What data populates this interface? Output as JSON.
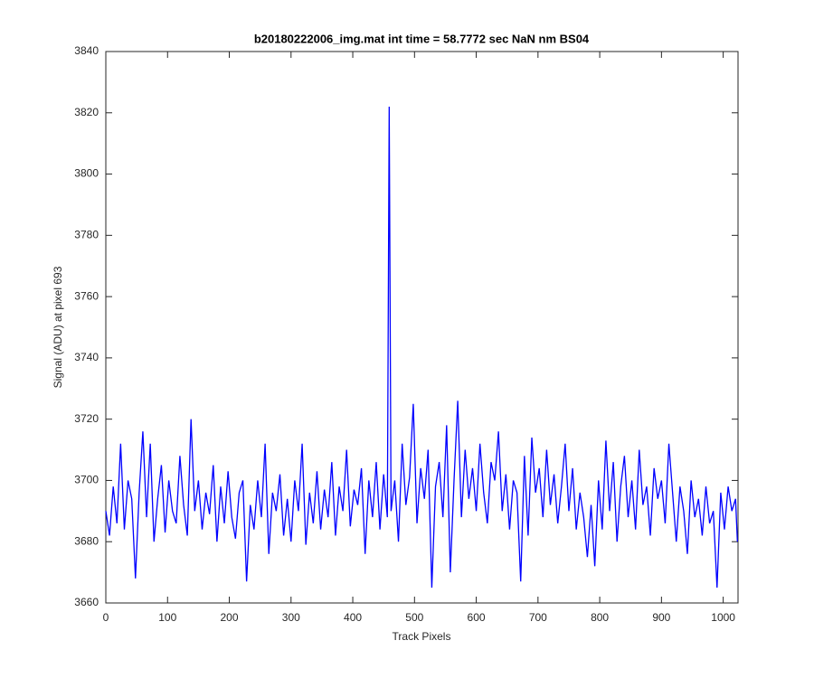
{
  "chart_data": {
    "type": "line",
    "title": "b20180222006_img.mat int time = 58.7772 sec  NaN nm BS04",
    "xlabel": "Track Pixels",
    "ylabel": "Signal (ADU) at pixel 693",
    "color": "#0000ff",
    "xlim": [
      0,
      1024
    ],
    "ylim": [
      3660,
      3840
    ],
    "xticks": [
      0,
      100,
      200,
      300,
      400,
      500,
      600,
      700,
      800,
      900,
      1000
    ],
    "yticks": [
      3660,
      3680,
      3700,
      3720,
      3740,
      3760,
      3780,
      3800,
      3820,
      3840
    ],
    "grid": false,
    "x": [
      0,
      6,
      12,
      18,
      24,
      30,
      36,
      42,
      48,
      54,
      60,
      66,
      72,
      78,
      84,
      90,
      96,
      102,
      108,
      114,
      120,
      126,
      132,
      138,
      144,
      150,
      156,
      162,
      168,
      174,
      180,
      186,
      192,
      198,
      204,
      210,
      216,
      222,
      228,
      234,
      240,
      246,
      252,
      258,
      264,
      270,
      276,
      282,
      288,
      294,
      300,
      306,
      312,
      318,
      324,
      330,
      336,
      342,
      348,
      354,
      360,
      366,
      372,
      378,
      384,
      390,
      396,
      402,
      408,
      414,
      420,
      426,
      432,
      438,
      444,
      450,
      456,
      459,
      462,
      468,
      474,
      480,
      486,
      492,
      498,
      504,
      510,
      516,
      522,
      528,
      534,
      540,
      546,
      552,
      558,
      564,
      570,
      576,
      582,
      588,
      594,
      600,
      606,
      612,
      618,
      624,
      630,
      636,
      642,
      648,
      654,
      660,
      666,
      672,
      678,
      684,
      690,
      696,
      702,
      708,
      714,
      720,
      726,
      732,
      738,
      744,
      750,
      756,
      762,
      768,
      774,
      780,
      786,
      792,
      798,
      804,
      810,
      816,
      822,
      828,
      834,
      840,
      846,
      852,
      858,
      864,
      870,
      876,
      882,
      888,
      894,
      900,
      906,
      912,
      918,
      924,
      930,
      936,
      942,
      948,
      954,
      960,
      966,
      972,
      978,
      984,
      990,
      996,
      1002,
      1008,
      1014,
      1020,
      1023
    ],
    "values": [
      3690,
      3682,
      3698,
      3686,
      3712,
      3684,
      3700,
      3694,
      3668,
      3696,
      3716,
      3688,
      3712,
      3680,
      3694,
      3705,
      3683,
      3700,
      3690,
      3686,
      3708,
      3692,
      3682,
      3720,
      3690,
      3700,
      3684,
      3696,
      3689,
      3705,
      3680,
      3698,
      3686,
      3703,
      3688,
      3681,
      3696,
      3700,
      3667,
      3692,
      3684,
      3700,
      3688,
      3712,
      3676,
      3696,
      3690,
      3702,
      3682,
      3694,
      3680,
      3700,
      3690,
      3712,
      3679,
      3696,
      3686,
      3703,
      3684,
      3697,
      3688,
      3706,
      3682,
      3698,
      3690,
      3710,
      3685,
      3697,
      3692,
      3704,
      3676,
      3700,
      3688,
      3706,
      3684,
      3702,
      3688,
      3822,
      3690,
      3700,
      3680,
      3712,
      3692,
      3701,
      3725,
      3686,
      3704,
      3694,
      3710,
      3665,
      3698,
      3706,
      3688,
      3718,
      3670,
      3700,
      3726,
      3688,
      3710,
      3694,
      3704,
      3690,
      3712,
      3696,
      3686,
      3706,
      3700,
      3716,
      3690,
      3702,
      3684,
      3700,
      3696,
      3667,
      3708,
      3682,
      3714,
      3696,
      3704,
      3688,
      3710,
      3692,
      3702,
      3686,
      3698,
      3712,
      3690,
      3704,
      3684,
      3696,
      3688,
      3675,
      3692,
      3672,
      3700,
      3684,
      3713,
      3690,
      3706,
      3680,
      3698,
      3708,
      3688,
      3700,
      3684,
      3710,
      3692,
      3698,
      3682,
      3704,
      3694,
      3700,
      3686,
      3712,
      3696,
      3680,
      3698,
      3690,
      3676,
      3700,
      3688,
      3694,
      3682,
      3698,
      3686,
      3690,
      3665,
      3696,
      3684,
      3698,
      3690,
      3694,
      3680
    ]
  }
}
